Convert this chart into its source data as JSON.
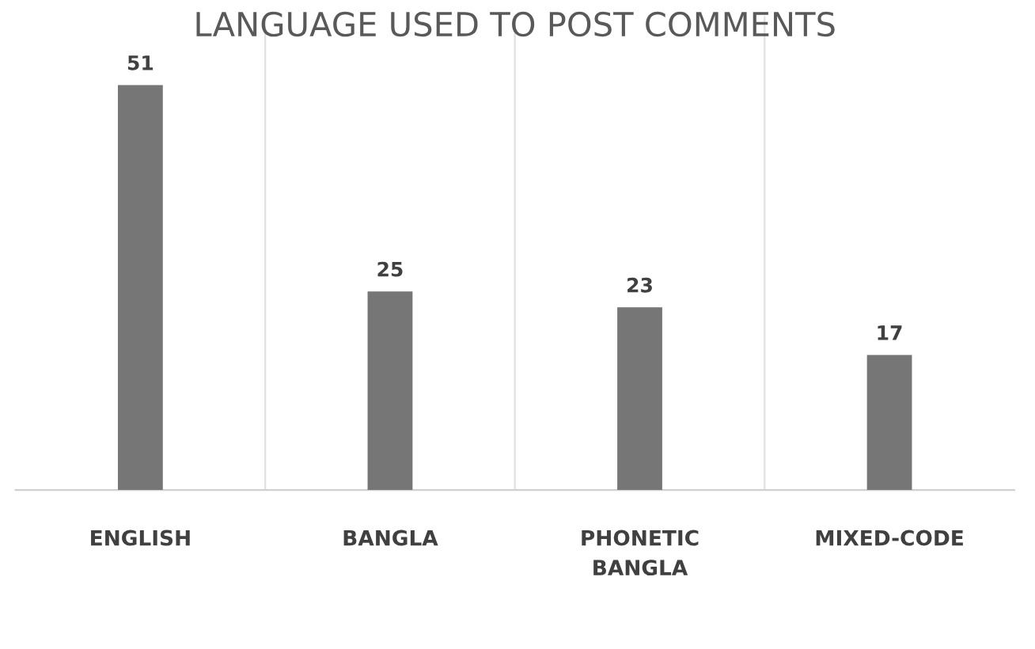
{
  "chart_data": {
    "type": "bar",
    "title": "LANGUAGE USED TO POST COMMENTS",
    "categories": [
      "ENGLISH",
      "BANGLA",
      "PHONETIC BANGLA",
      "MIXED-CODE"
    ],
    "values": [
      51,
      25,
      23,
      17
    ],
    "color": "#767676",
    "data_labels": true,
    "grid": "x",
    "tick_labels": "x"
  }
}
